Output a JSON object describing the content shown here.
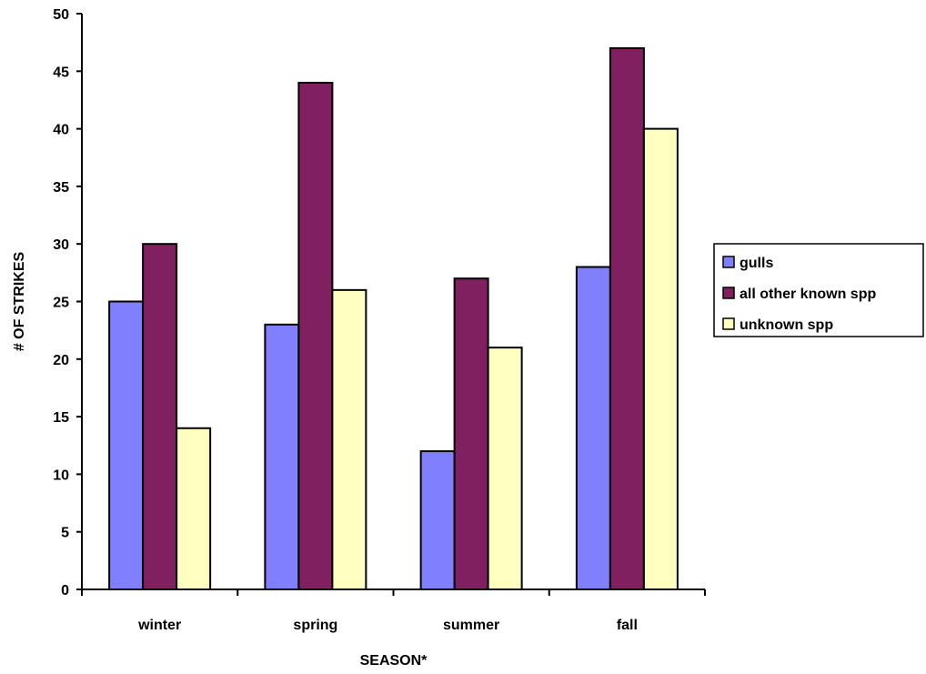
{
  "chart_data": {
    "type": "bar",
    "title": "",
    "xlabel": "SEASON*",
    "ylabel": "# OF STRIKES",
    "categories": [
      "winter",
      "spring",
      "summer",
      "fall"
    ],
    "series": [
      {
        "name": "gulls",
        "values": [
          25,
          23,
          12,
          28
        ],
        "color": "#8080FF"
      },
      {
        "name": "all other known spp",
        "values": [
          30,
          44,
          27,
          47
        ],
        "color": "#802060"
      },
      {
        "name": "unknown spp",
        "values": [
          14,
          26,
          21,
          40
        ],
        "color": "#FFFFC0"
      }
    ],
    "ylim": [
      0,
      50
    ],
    "yticks": [
      "0",
      "5",
      "10",
      "15",
      "20",
      "25",
      "30",
      "35",
      "40",
      "45",
      "50"
    ],
    "grid": false,
    "legend_position": "right"
  }
}
